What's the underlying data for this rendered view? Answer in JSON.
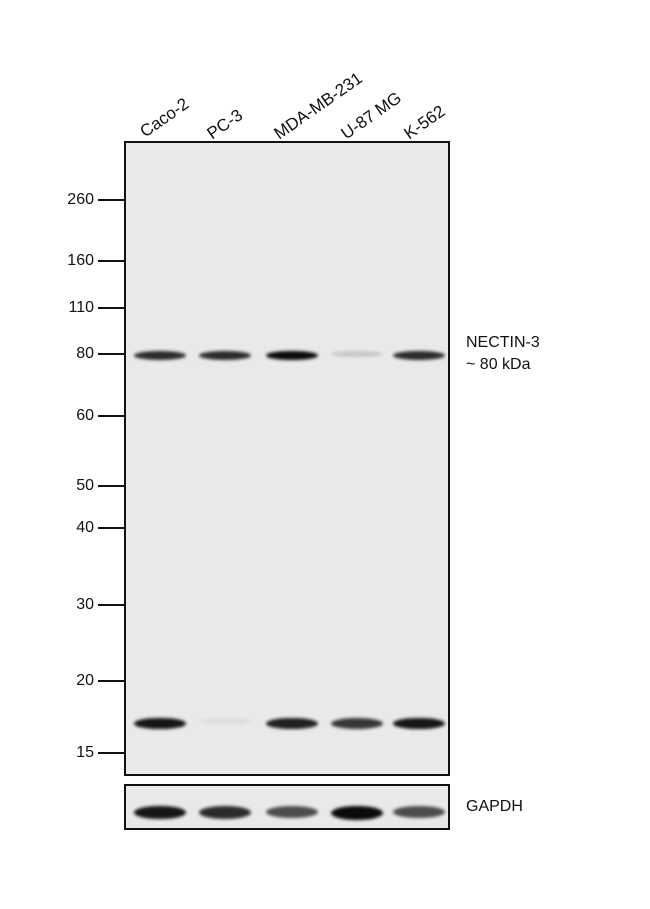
{
  "lanes": [
    "Caco-2",
    "PC-3",
    "MDA-MB-231",
    "U-87 MG",
    "K-562"
  ],
  "markers_kda": [
    "260",
    "160",
    "110",
    "80",
    "60",
    "50",
    "40",
    "30",
    "20",
    "15"
  ],
  "target": {
    "name": "NECTIN-3",
    "size": "~ 80 kDa"
  },
  "loading_control": "GAPDH",
  "band_intensity": {
    "nectin3_80kda": [
      0.85,
      0.85,
      1.0,
      0.15,
      0.85
    ],
    "lower_band_17kda": [
      0.95,
      0.05,
      0.9,
      0.8,
      0.95
    ],
    "gapdh": [
      0.95,
      0.85,
      0.7,
      1.0,
      0.7
    ]
  },
  "colors": {
    "band": "#0a0a0a",
    "membrane": "#e9e9e9"
  }
}
